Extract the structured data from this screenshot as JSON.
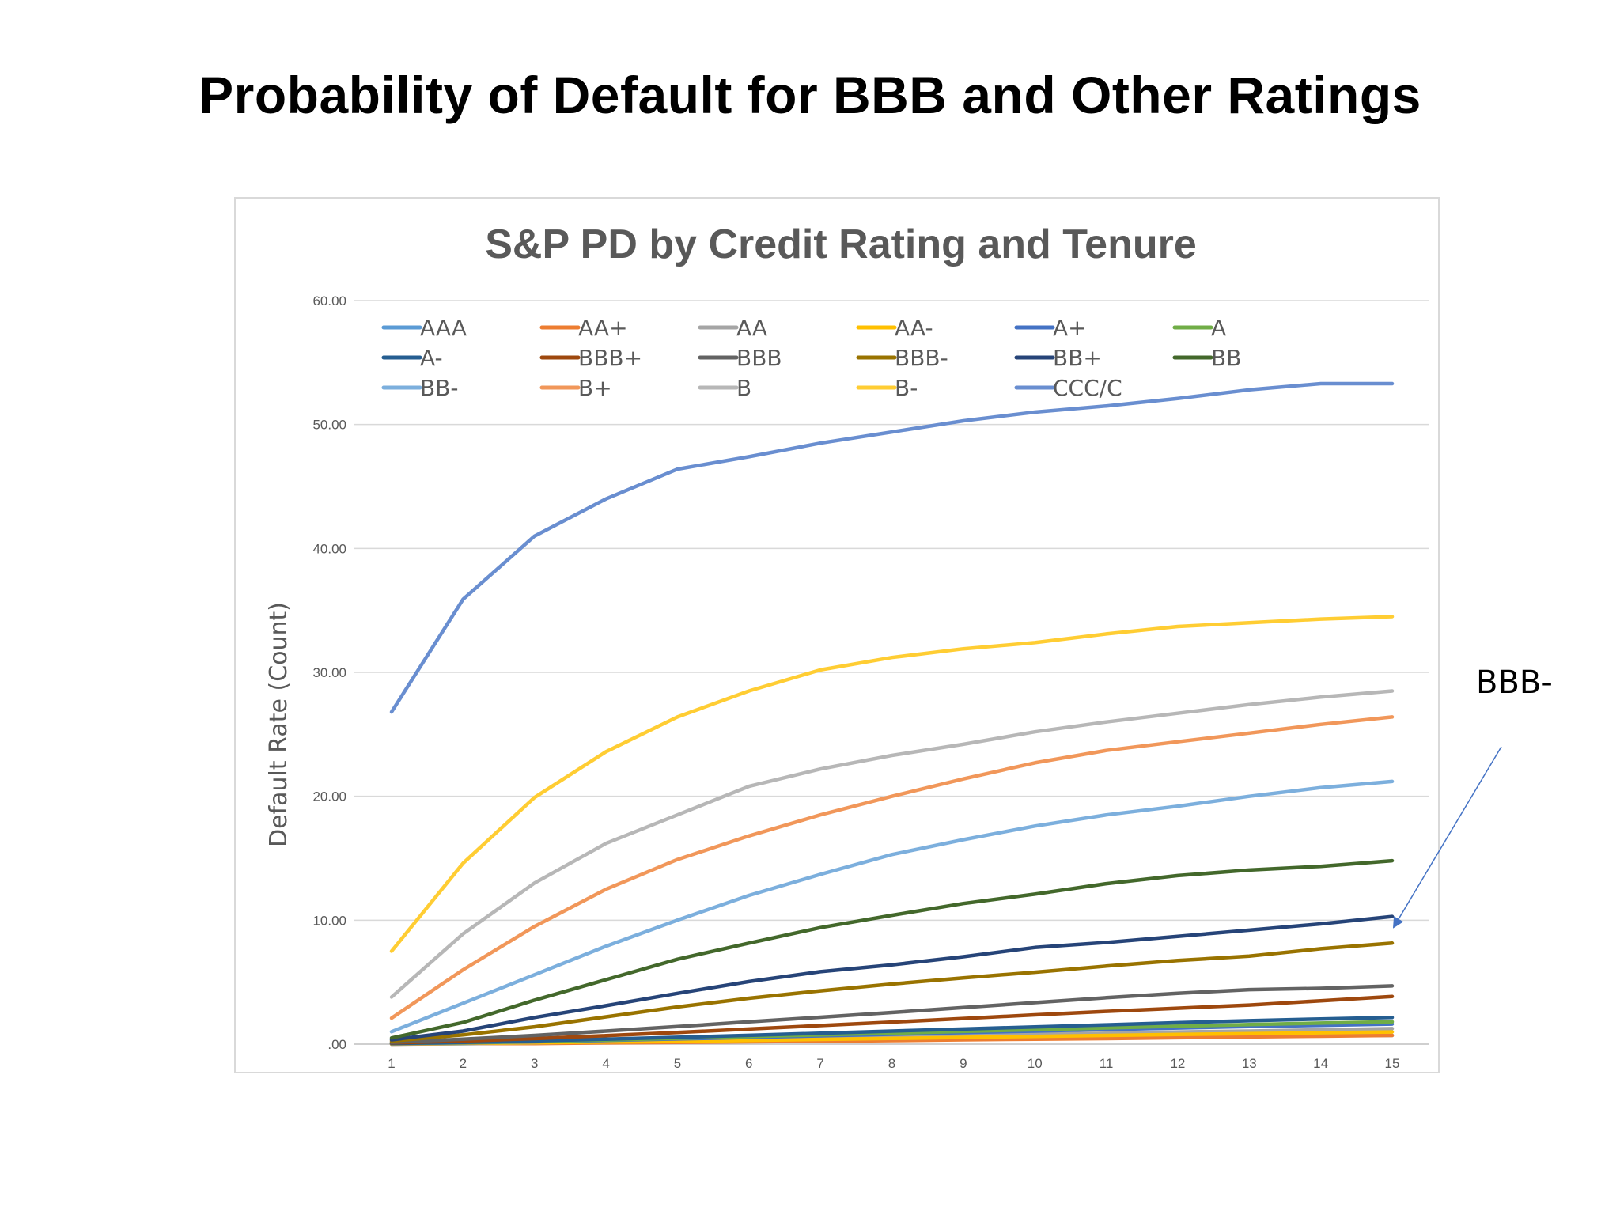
{
  "slide": {
    "title": "Probability of Default for BBB and Other Ratings",
    "annotation": "BBB-"
  },
  "chart_data": {
    "type": "line",
    "title": "S&P PD by Credit Rating and Tenure",
    "xlabel": "",
    "ylabel": "Default Rate (Count)",
    "categories": [
      "1",
      "2",
      "3",
      "4",
      "5",
      "6",
      "7",
      "8",
      "9",
      "10",
      "11",
      "12",
      "13",
      "14",
      "15"
    ],
    "y_tick_labels": [
      ".00",
      "10.00",
      "20.00",
      "30.00",
      "40.00",
      "50.00",
      "60.00"
    ],
    "ylim": [
      0,
      60
    ],
    "grid": true,
    "legend_position": "top",
    "series": [
      {
        "name": "AAA",
        "color": "#5b9bd5",
        "values": [
          0.0,
          0.03,
          0.1,
          0.17,
          0.25,
          0.35,
          0.39,
          0.47,
          0.51,
          0.57,
          0.59,
          0.65,
          0.66,
          0.68,
          0.7
        ]
      },
      {
        "name": "AA+",
        "color": "#ed7d31",
        "values": [
          0.0,
          0.05,
          0.05,
          0.1,
          0.14,
          0.19,
          0.23,
          0.29,
          0.35,
          0.4,
          0.45,
          0.52,
          0.58,
          0.64,
          0.7
        ]
      },
      {
        "name": "AA",
        "color": "#a5a5a5",
        "values": [
          0.02,
          0.05,
          0.1,
          0.2,
          0.31,
          0.4,
          0.5,
          0.6,
          0.7,
          0.8,
          0.88,
          0.98,
          1.05,
          1.15,
          1.25
        ]
      },
      {
        "name": "AA-",
        "color": "#ffc000",
        "values": [
          0.03,
          0.07,
          0.12,
          0.17,
          0.22,
          0.3,
          0.38,
          0.46,
          0.54,
          0.62,
          0.7,
          0.78,
          0.85,
          0.92,
          0.98
        ]
      },
      {
        "name": "A+",
        "color": "#4472c4",
        "values": [
          0.05,
          0.1,
          0.19,
          0.3,
          0.42,
          0.54,
          0.67,
          0.8,
          0.93,
          1.05,
          1.18,
          1.3,
          1.42,
          1.52,
          1.62
        ]
      },
      {
        "name": "A",
        "color": "#70ad47",
        "values": [
          0.06,
          0.13,
          0.22,
          0.34,
          0.47,
          0.61,
          0.75,
          0.89,
          1.03,
          1.17,
          1.31,
          1.45,
          1.58,
          1.7,
          1.8
        ]
      },
      {
        "name": "A-",
        "color": "#255e91",
        "values": [
          0.06,
          0.15,
          0.26,
          0.4,
          0.55,
          0.71,
          0.88,
          1.05,
          1.22,
          1.39,
          1.56,
          1.73,
          1.89,
          2.03,
          2.15
        ]
      },
      {
        "name": "BBB+",
        "color": "#9e480e",
        "values": [
          0.1,
          0.25,
          0.45,
          0.68,
          0.94,
          1.22,
          1.5,
          1.78,
          2.07,
          2.36,
          2.64,
          2.9,
          3.15,
          3.5,
          3.85
        ]
      },
      {
        "name": "BBB",
        "color": "#636363",
        "values": [
          0.15,
          0.4,
          0.7,
          1.05,
          1.42,
          1.8,
          2.17,
          2.55,
          2.95,
          3.35,
          3.75,
          4.1,
          4.4,
          4.5,
          4.7
        ]
      },
      {
        "name": "BBB-",
        "color": "#997300",
        "values": [
          0.25,
          0.75,
          1.4,
          2.2,
          3.0,
          3.7,
          4.3,
          4.85,
          5.35,
          5.8,
          6.3,
          6.75,
          7.1,
          7.7,
          8.15
        ]
      },
      {
        "name": "BB+",
        "color": "#264478",
        "values": [
          0.35,
          1.05,
          2.15,
          3.1,
          4.1,
          5.05,
          5.85,
          6.4,
          7.05,
          7.8,
          8.2,
          8.7,
          9.2,
          9.7,
          10.3
        ]
      },
      {
        "name": "BB",
        "color": "#43682b",
        "values": [
          0.5,
          1.75,
          3.55,
          5.2,
          6.85,
          8.15,
          9.4,
          10.4,
          11.35,
          12.1,
          12.95,
          13.6,
          14.05,
          14.35,
          14.8
        ]
      },
      {
        "name": "BB-",
        "color": "#7cafdd",
        "values": [
          1.0,
          3.3,
          5.6,
          7.9,
          10.0,
          12.0,
          13.7,
          15.3,
          16.5,
          17.6,
          18.5,
          19.2,
          20.0,
          20.7,
          21.2
        ]
      },
      {
        "name": "B+",
        "color": "#f1975a",
        "values": [
          2.1,
          6.0,
          9.5,
          12.5,
          14.9,
          16.8,
          18.5,
          20.0,
          21.4,
          22.7,
          23.7,
          24.4,
          25.1,
          25.8,
          26.4
        ]
      },
      {
        "name": "B",
        "color": "#b7b7b7",
        "values": [
          3.8,
          8.9,
          13.0,
          16.2,
          18.5,
          20.8,
          22.2,
          23.3,
          24.2,
          25.2,
          26.0,
          26.7,
          27.4,
          28.0,
          28.5
        ]
      },
      {
        "name": "B-",
        "color": "#ffcd33",
        "values": [
          7.5,
          14.6,
          19.9,
          23.6,
          26.4,
          28.5,
          30.2,
          31.2,
          31.9,
          32.4,
          33.1,
          33.7,
          34.0,
          34.3,
          34.5
        ]
      },
      {
        "name": "CCC/C",
        "color": "#698ed0",
        "values": [
          26.8,
          35.9,
          41.0,
          44.0,
          46.4,
          47.4,
          48.5,
          49.4,
          50.3,
          51.0,
          51.5,
          52.1,
          52.8,
          53.3,
          53.3
        ]
      }
    ]
  }
}
